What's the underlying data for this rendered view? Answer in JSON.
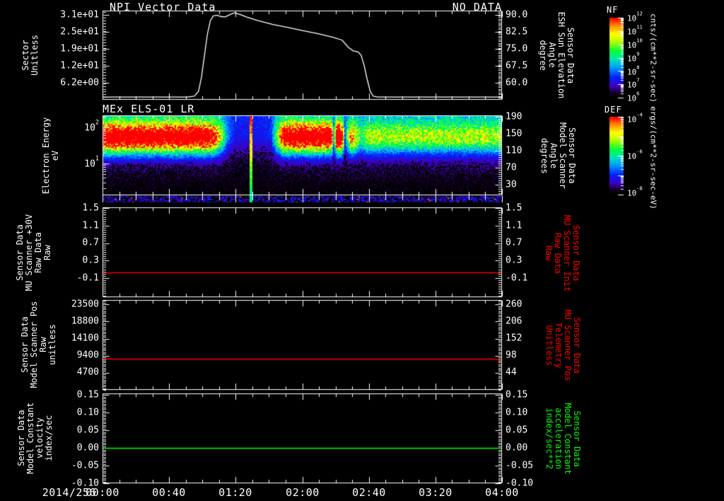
{
  "figure": {
    "date_label": "2014/256",
    "x_tick_labels": [
      "00:00",
      "00:40",
      "01:20",
      "02:00",
      "02:40",
      "03:20",
      "04:00"
    ],
    "colors": {
      "background": "#000000",
      "foreground": "#ffffff",
      "red_trace": "#ff0000",
      "green_trace": "#00ff00"
    },
    "panels": [
      {
        "title": "NPI Vector Data",
        "title_right": "NO DATA",
        "left_axis": {
          "title_lines": [
            "Sector",
            "Unitless"
          ],
          "tick_labels": [
            "3.1e+01",
            "2.5e+01",
            "1.9e+01",
            "1.2e+01",
            "6.2e+00"
          ]
        },
        "right_axis": {
          "title_lines": [
            "Sensor Data",
            "ESH Sun Elevation",
            "Angle",
            "degree"
          ],
          "tick_labels": [
            "90.0",
            "82.5",
            "75.0",
            "67.5",
            "60.0"
          ],
          "title_color": "#ffffff"
        }
      },
      {
        "title": "MEx ELS-01 LR",
        "left_axis": {
          "title_lines": [
            "Electron Energy",
            "eV"
          ],
          "tick_labels": [
            "10^2",
            "10^1"
          ]
        },
        "right_axis": {
          "title_lines": [
            "Sensor Data",
            "Model Scanner",
            "Angle",
            "degrees"
          ],
          "tick_labels": [
            "190",
            "150",
            "110",
            "70",
            "30"
          ],
          "title_color": "#ffffff"
        }
      },
      {
        "title": "",
        "left_axis": {
          "title_lines": [
            "Sensor Data",
            "MU Scanner +30V",
            "Raw Data",
            "Raw"
          ],
          "tick_labels": [
            "1.5",
            "1.1",
            "0.7",
            "0.3",
            "-0.1"
          ]
        },
        "right_axis": {
          "title_lines": [
            "Sensor Data",
            "MU Scanner Init",
            "Raw Data",
            "Raw"
          ],
          "tick_labels": [
            "1.5",
            "1.1",
            "0.7",
            "0.3",
            "-0.1"
          ],
          "title_color": "#ff0000"
        }
      },
      {
        "title": "",
        "left_axis": {
          "title_lines": [
            "Sensor Data",
            "Model Scanner Pos",
            "Raw",
            "unitless"
          ],
          "tick_labels": [
            "23500",
            "18800",
            "14100",
            "9400",
            "4700"
          ]
        },
        "right_axis": {
          "title_lines": [
            "Sensor Data",
            "MU Scanner Pos",
            "Telemetry",
            "Unitless"
          ],
          "tick_labels": [
            "260",
            "206",
            "152",
            "98",
            "44"
          ],
          "title_color": "#ff0000"
        }
      },
      {
        "title": "",
        "left_axis": {
          "title_lines": [
            "Sensor Data",
            "Model Constant",
            "velocity",
            "index/sec"
          ],
          "tick_labels": [
            "0.15",
            "0.10",
            "0.05",
            "0.00",
            "-0.05",
            "-0.10"
          ]
        },
        "right_axis": {
          "title_lines": [
            "Sensor Data",
            "Model Constant",
            "acceleration",
            "index/sec**2"
          ],
          "tick_labels": [
            "0.15",
            "0.10",
            "0.05",
            "0.00",
            "-0.05",
            "-0.10"
          ],
          "title_color": "#00ff00"
        }
      }
    ],
    "colorbars": [
      {
        "title": "NF",
        "tick_labels": [
          "10^12",
          "10^11",
          "10^10",
          "10^9",
          "10^8",
          "10^7",
          "10^6"
        ],
        "units": "cnts/(cm**2-sr-sec)"
      },
      {
        "title": "DEF",
        "tick_labels": [
          "10^-4",
          "10^-6",
          "10^-8"
        ],
        "units": "ergs/(cm**2-sr-sec-eV)"
      }
    ]
  },
  "chart_data": [
    {
      "type": "line",
      "panel": 1,
      "title": "NPI Vector Data",
      "note": "NO DATA",
      "ylabel": "Sector Unitless",
      "right_ylabel": "Sensor Data ESH Sun Elevation Angle degree",
      "xlabel": "2014/256 time, 00:00 to 04:00",
      "xlim_hours": [
        0,
        4
      ],
      "ylim": [
        0,
        32.6
      ],
      "left_tick_values": [
        31,
        24.8,
        18.6,
        12.4,
        6.2
      ],
      "right_tick_values": [
        90.0,
        82.5,
        75.0,
        67.5,
        60.0
      ],
      "line_color": "#ffffff",
      "x_hours": [
        0.0,
        0.85,
        0.92,
        0.96,
        0.99,
        1.02,
        1.05,
        1.08,
        1.11,
        1.15,
        1.19,
        1.23,
        1.28,
        1.32,
        1.37,
        1.45,
        1.55,
        1.7,
        1.85,
        2.0,
        2.15,
        2.3,
        2.4,
        2.46,
        2.51,
        2.56,
        2.59,
        2.62,
        2.65,
        2.68,
        2.71,
        2.76,
        4.0
      ],
      "values": [
        1.0,
        1.0,
        1.3,
        3.0,
        8.0,
        16.0,
        24.0,
        29.0,
        30.7,
        30.9,
        30.4,
        30.3,
        31.2,
        31.8,
        31.3,
        30.2,
        29.0,
        27.6,
        26.5,
        25.3,
        24.2,
        22.9,
        21.8,
        19.2,
        17.9,
        17.5,
        16.2,
        12.5,
        7.5,
        3.2,
        1.3,
        1.0,
        1.0
      ]
    },
    {
      "type": "heatmap",
      "panel": 2,
      "title": "MEx ELS-01 LR",
      "ylabel": "Electron Energy eV",
      "yscale": "log",
      "ylim_ev": [
        1.3,
        215
      ],
      "y_tick_values": [
        100,
        10
      ],
      "colorbar": "DEF",
      "units": "ergs/(cm**2-sr-sec-eV)",
      "band_center_frac": 0.27,
      "band_sigma": 0.135,
      "intensity_profile_t": [
        [
          0,
          1
        ],
        [
          0.25,
          1
        ],
        [
          0.27,
          0.95
        ],
        [
          0.29,
          0.6
        ],
        [
          0.31,
          0.2
        ],
        [
          0.33,
          0.07
        ],
        [
          0.38,
          0.06
        ],
        [
          0.42,
          0.08
        ],
        [
          0.44,
          0.55
        ],
        [
          0.455,
          1
        ],
        [
          0.57,
          1
        ],
        [
          0.578,
          0.15
        ],
        [
          0.585,
          1.05
        ],
        [
          0.597,
          1.05
        ],
        [
          0.605,
          0.15
        ],
        [
          0.62,
          0.7
        ],
        [
          0.632,
          0.55
        ],
        [
          0.645,
          0.35
        ],
        [
          0.66,
          0.48
        ],
        [
          1,
          0.48
        ]
      ],
      "bright_stripes_t": [
        0.369
      ],
      "colormap_stops": [
        [
          0,
          "#000000"
        ],
        [
          0.06,
          "#140028"
        ],
        [
          0.14,
          "#4000c0"
        ],
        [
          0.25,
          "#0020ff"
        ],
        [
          0.38,
          "#00a0ff"
        ],
        [
          0.48,
          "#00e6b4"
        ],
        [
          0.58,
          "#00ff3c"
        ],
        [
          0.7,
          "#b4ff00"
        ],
        [
          0.8,
          "#ffff00"
        ],
        [
          0.9,
          "#ff8c00"
        ],
        [
          1,
          "#ff0000"
        ]
      ]
    },
    {
      "type": "hline",
      "panel": 3,
      "value": 0.03,
      "color": "#ff0000",
      "ylim": [
        -0.54,
        1.52
      ],
      "left_tick_values": [
        1.5,
        1.1,
        0.7,
        0.3,
        -0.1
      ],
      "right_tick_values": [
        1.5,
        1.1,
        0.7,
        0.3,
        -0.1
      ]
    },
    {
      "type": "hline",
      "panel": 4,
      "value": 8600,
      "color": "#ff0000",
      "ylim": [
        0,
        24700
      ],
      "left_tick_values": [
        23500,
        18800,
        14100,
        9400,
        4700
      ],
      "right_tick_values": [
        260,
        206,
        152,
        98,
        44
      ]
    },
    {
      "type": "hline",
      "panel": 5,
      "value": 0.0,
      "color": "#00ff00",
      "ylim": [
        -0.1,
        0.154
      ],
      "left_tick_values": [
        0.15,
        0.1,
        0.05,
        0.0,
        -0.05,
        -0.1
      ],
      "right_tick_values": [
        0.15,
        0.1,
        0.05,
        0.0,
        -0.05,
        -0.1
      ]
    }
  ]
}
